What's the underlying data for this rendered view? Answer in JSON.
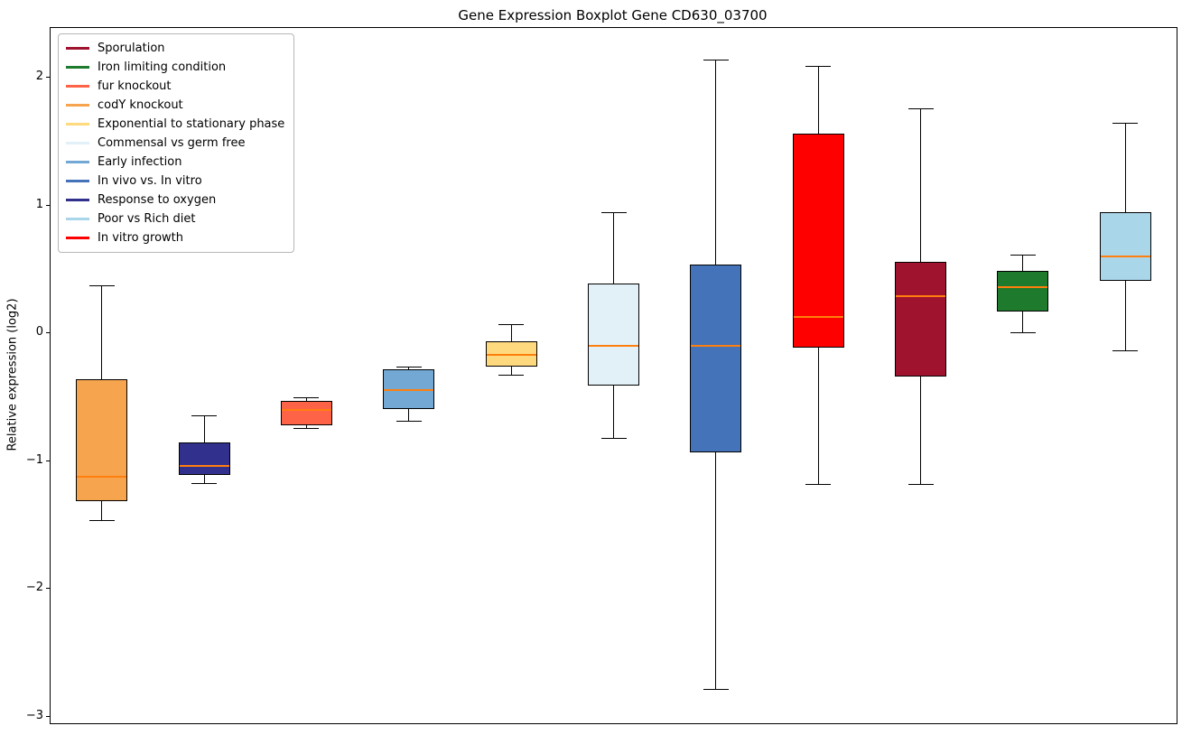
{
  "chart_data": {
    "type": "boxplot",
    "title": "Gene Expression Boxplot Gene CD630_03700",
    "ylabel": "Relative expression (log2)",
    "ylim": [
      -3.05,
      2.39
    ],
    "grid": false,
    "legend_position": "upper left",
    "median_color": "#ff7f0e",
    "yticks": [
      {
        "value": 2,
        "label": "2"
      },
      {
        "value": 1,
        "label": "1"
      },
      {
        "value": 0,
        "label": "0"
      },
      {
        "value": -1,
        "label": "−1"
      },
      {
        "value": -2,
        "label": "−2"
      },
      {
        "value": -3,
        "label": "−3"
      }
    ],
    "legend": [
      {
        "label": "Sporulation",
        "color": "#a0132f"
      },
      {
        "label": "Iron limiting condition",
        "color": "#1e7b2d"
      },
      {
        "label": "fur knockout",
        "color": "#ff6347"
      },
      {
        "label": "codY knockout",
        "color": "#f7a44f"
      },
      {
        "label": "Exponential to stationary phase",
        "color": "#ffd97d"
      },
      {
        "label": "Commensal vs germ free",
        "color": "#e2f1f8"
      },
      {
        "label": "Early infection",
        "color": "#72a8d3"
      },
      {
        "label": "In vivo vs. In vitro",
        "color": "#4573b9"
      },
      {
        "label": "Response to oxygen",
        "color": "#31308d"
      },
      {
        "label": "Poor vs Rich diet",
        "color": "#aad6ea"
      },
      {
        "label": "In vitro growth",
        "color": "#ff0000"
      }
    ],
    "boxes": [
      {
        "label": "codY knockout",
        "color": "#f7a44f",
        "whislo": -1.46,
        "q1": -1.31,
        "med": -1.12,
        "q3": -0.36,
        "whishi": 0.38
      },
      {
        "label": "Response to oxygen",
        "color": "#31308d",
        "whislo": -1.17,
        "q1": -1.11,
        "med": -1.04,
        "q3": -0.85,
        "whishi": -0.64
      },
      {
        "label": "fur knockout",
        "color": "#ff6347",
        "whislo": -0.74,
        "q1": -0.72,
        "med": -0.6,
        "q3": -0.53,
        "whishi": -0.5
      },
      {
        "label": "Early infection",
        "color": "#72a8d3",
        "whislo": -0.68,
        "q1": -0.59,
        "med": -0.44,
        "q3": -0.28,
        "whishi": -0.26
      },
      {
        "label": "Exponential to stationary phase",
        "color": "#ffd97d",
        "whislo": -0.32,
        "q1": -0.26,
        "med": -0.17,
        "q3": -0.06,
        "whishi": 0.07
      },
      {
        "label": "Commensal vs germ free",
        "color": "#e2f1f8",
        "whislo": -0.82,
        "q1": -0.41,
        "med": -0.1,
        "q3": 0.39,
        "whishi": 0.95
      },
      {
        "label": "In vivo vs. In vitro",
        "color": "#4573b9",
        "whislo": -2.78,
        "q1": -0.93,
        "med": -0.1,
        "q3": 0.54,
        "whishi": 2.14
      },
      {
        "label": "In vitro growth",
        "color": "#ff0000",
        "whislo": -1.18,
        "q1": -0.11,
        "med": 0.13,
        "q3": 1.56,
        "whishi": 2.09
      },
      {
        "label": "Sporulation",
        "color": "#a0132f",
        "whislo": -1.18,
        "q1": -0.34,
        "med": 0.29,
        "q3": 0.56,
        "whishi": 1.76
      },
      {
        "label": "Iron limiting condition",
        "color": "#1e7b2d",
        "whislo": 0.01,
        "q1": 0.17,
        "med": 0.36,
        "q3": 0.49,
        "whishi": 0.62
      },
      {
        "label": "Poor vs Rich diet",
        "color": "#aad6ea",
        "whislo": -0.13,
        "q1": 0.41,
        "med": 0.6,
        "q3": 0.95,
        "whishi": 1.65
      }
    ]
  }
}
